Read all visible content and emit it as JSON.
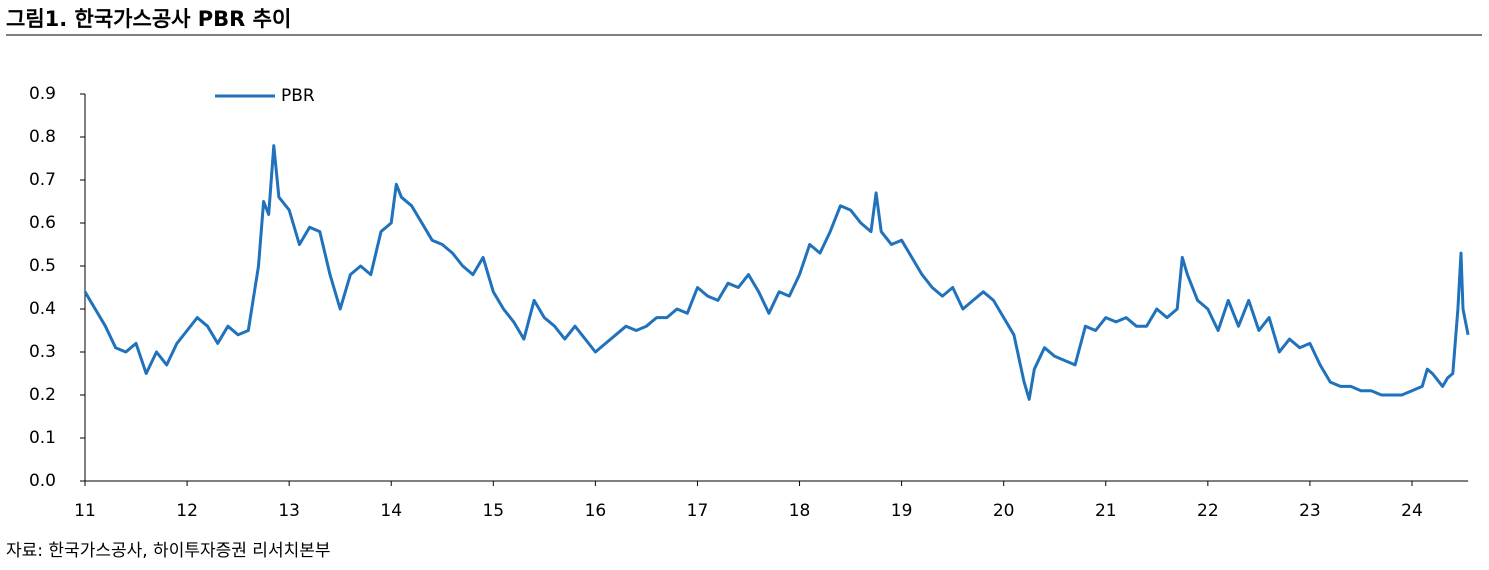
{
  "chart_data": {
    "type": "line",
    "title": "그림1. 한국가스공사 PBR 추이",
    "source": "자료: 한국가스공사, 하이투자증권 리서치본부",
    "x": [
      11.0,
      11.1,
      11.2,
      11.3,
      11.4,
      11.5,
      11.6,
      11.7,
      11.8,
      11.9,
      12.0,
      12.1,
      12.2,
      12.3,
      12.4,
      12.5,
      12.6,
      12.7,
      12.75,
      12.8,
      12.85,
      12.9,
      13.0,
      13.1,
      13.2,
      13.3,
      13.4,
      13.5,
      13.6,
      13.7,
      13.8,
      13.9,
      14.0,
      14.05,
      14.1,
      14.2,
      14.3,
      14.4,
      14.5,
      14.6,
      14.7,
      14.8,
      14.9,
      15.0,
      15.1,
      15.2,
      15.3,
      15.4,
      15.5,
      15.6,
      15.7,
      15.8,
      15.9,
      16.0,
      16.1,
      16.2,
      16.3,
      16.4,
      16.5,
      16.6,
      16.7,
      16.8,
      16.9,
      17.0,
      17.1,
      17.2,
      17.3,
      17.4,
      17.5,
      17.6,
      17.7,
      17.8,
      17.9,
      18.0,
      18.1,
      18.2,
      18.3,
      18.4,
      18.5,
      18.6,
      18.7,
      18.75,
      18.8,
      18.9,
      19.0,
      19.1,
      19.2,
      19.3,
      19.4,
      19.5,
      19.6,
      19.7,
      19.8,
      19.9,
      20.0,
      20.1,
      20.2,
      20.25,
      20.3,
      20.4,
      20.5,
      20.6,
      20.7,
      20.8,
      20.9,
      21.0,
      21.1,
      21.2,
      21.3,
      21.4,
      21.5,
      21.6,
      21.7,
      21.75,
      21.8,
      21.9,
      22.0,
      22.1,
      22.2,
      22.3,
      22.4,
      22.5,
      22.6,
      22.7,
      22.8,
      22.9,
      23.0,
      23.1,
      23.2,
      23.3,
      23.4,
      23.5,
      23.6,
      23.7,
      23.8,
      23.9,
      24.0,
      24.1,
      24.15,
      24.2,
      24.3,
      24.35,
      24.4,
      24.45,
      24.48,
      24.5,
      24.55
    ],
    "series": [
      {
        "name": "PBR",
        "color": "#1f72bb",
        "values": [
          0.44,
          0.4,
          0.36,
          0.31,
          0.3,
          0.32,
          0.25,
          0.3,
          0.27,
          0.32,
          0.35,
          0.38,
          0.36,
          0.32,
          0.36,
          0.34,
          0.35,
          0.5,
          0.65,
          0.62,
          0.78,
          0.66,
          0.63,
          0.55,
          0.59,
          0.58,
          0.48,
          0.4,
          0.48,
          0.5,
          0.48,
          0.58,
          0.6,
          0.69,
          0.66,
          0.64,
          0.6,
          0.56,
          0.55,
          0.53,
          0.5,
          0.48,
          0.52,
          0.44,
          0.4,
          0.37,
          0.33,
          0.42,
          0.38,
          0.36,
          0.33,
          0.36,
          0.33,
          0.3,
          0.32,
          0.34,
          0.36,
          0.35,
          0.36,
          0.38,
          0.38,
          0.4,
          0.39,
          0.45,
          0.43,
          0.42,
          0.46,
          0.45,
          0.48,
          0.44,
          0.39,
          0.44,
          0.43,
          0.48,
          0.55,
          0.53,
          0.58,
          0.64,
          0.63,
          0.6,
          0.58,
          0.67,
          0.58,
          0.55,
          0.56,
          0.52,
          0.48,
          0.45,
          0.43,
          0.45,
          0.4,
          0.42,
          0.44,
          0.42,
          0.38,
          0.34,
          0.23,
          0.19,
          0.26,
          0.31,
          0.29,
          0.28,
          0.27,
          0.36,
          0.35,
          0.38,
          0.37,
          0.38,
          0.36,
          0.36,
          0.4,
          0.38,
          0.4,
          0.52,
          0.48,
          0.42,
          0.4,
          0.35,
          0.42,
          0.36,
          0.42,
          0.35,
          0.38,
          0.3,
          0.33,
          0.31,
          0.32,
          0.27,
          0.23,
          0.22,
          0.22,
          0.21,
          0.21,
          0.2,
          0.2,
          0.2,
          0.21,
          0.22,
          0.26,
          0.25,
          0.22,
          0.24,
          0.25,
          0.4,
          0.53,
          0.4,
          0.34
        ]
      }
    ],
    "xlim": [
      11,
      24.55
    ],
    "xticks": [
      11,
      12,
      13,
      14,
      15,
      16,
      17,
      18,
      19,
      20,
      21,
      22,
      23,
      24
    ],
    "ylim": [
      0,
      0.9
    ],
    "yticks": [
      {
        "value": 0,
        "label": "0.0"
      },
      0.1,
      0.2,
      0.3,
      0.4,
      0.5,
      0.6,
      0.7,
      0.8,
      0.9
    ],
    "legend": "top-left"
  }
}
